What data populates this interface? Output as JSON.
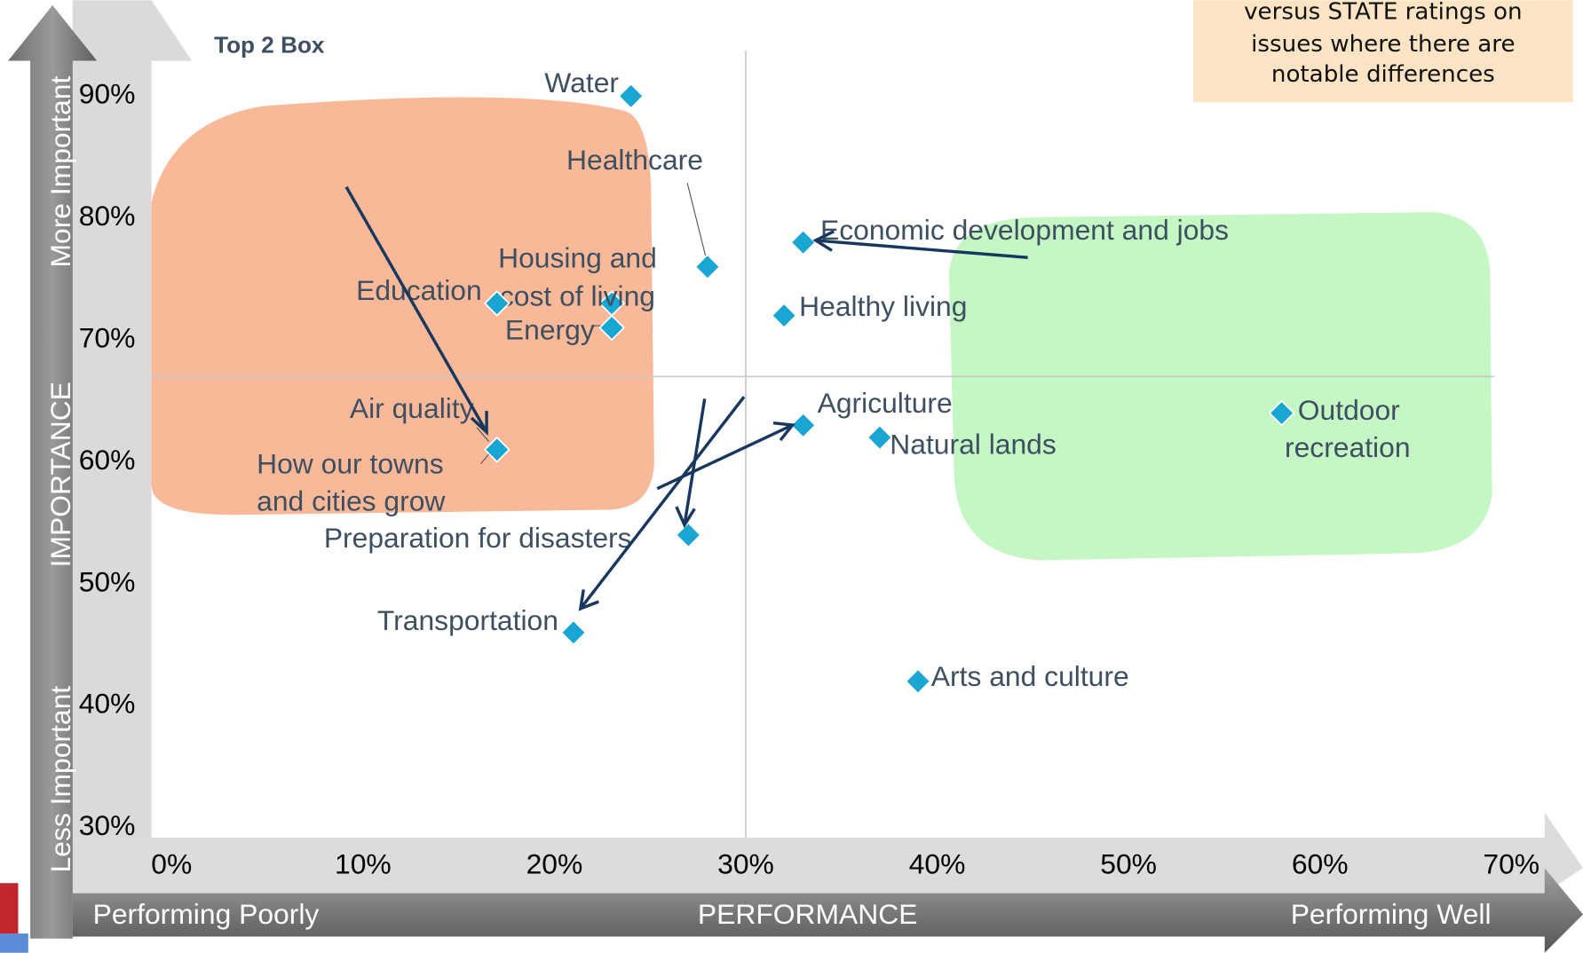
{
  "chart_data": {
    "type": "scatter",
    "title": "Top 2 Box",
    "x_label": "PERFORMANCE",
    "y_label": "IMPORTANCE",
    "x_axis_ends": [
      "Performing Poorly",
      "Performing Well"
    ],
    "y_axis_ends": [
      "Less Important",
      "More Important"
    ],
    "note": [
      "versus STATE ratings on",
      "issues where there are",
      "notable differences"
    ],
    "color": "#19a6d3",
    "labels": [
      "Water",
      "Healthcare",
      [
        "Housing and",
        "cost of living"
      ],
      "Education",
      "Energy",
      "Air quality",
      [
        "How our towns",
        "and cities grow"
      ],
      "Preparation for disasters",
      "Transportation",
      "Economic development and jobs",
      "Healthy living",
      "Agriculture",
      "Natural lands",
      "Arts and culture",
      [
        "Outdoor",
        "recreation"
      ]
    ],
    "x": [
      24,
      28,
      23,
      17,
      23,
      17,
      17,
      27,
      21,
      33,
      32,
      33,
      37,
      39,
      58
    ],
    "values": [
      90,
      76,
      73,
      73,
      71,
      61,
      61,
      54,
      46,
      78,
      72,
      63,
      62,
      42,
      64
    ],
    "x_ref": 30,
    "y_ref": 67,
    "xlim": [
      0,
      70
    ],
    "ylim": [
      30,
      90
    ],
    "xticks": [
      {
        "value": 0,
        "label": "0%"
      },
      {
        "value": 10,
        "label": "10%"
      },
      {
        "value": 20,
        "label": "20%"
      },
      {
        "value": 30,
        "label": "30%"
      },
      {
        "value": 40,
        "label": "40%"
      },
      {
        "value": 50,
        "label": "50%"
      },
      {
        "value": 60,
        "label": "60%"
      },
      {
        "value": 70,
        "label": "70%"
      }
    ],
    "yticks": [
      {
        "value": 30,
        "label": "30%"
      },
      {
        "value": 40,
        "label": "40%"
      },
      {
        "value": 50,
        "label": "50%"
      },
      {
        "value": 60,
        "label": "60%"
      },
      {
        "value": 70,
        "label": "70%"
      },
      {
        "value": 80,
        "label": "80%"
      },
      {
        "value": 90,
        "label": "90%"
      }
    ]
  }
}
